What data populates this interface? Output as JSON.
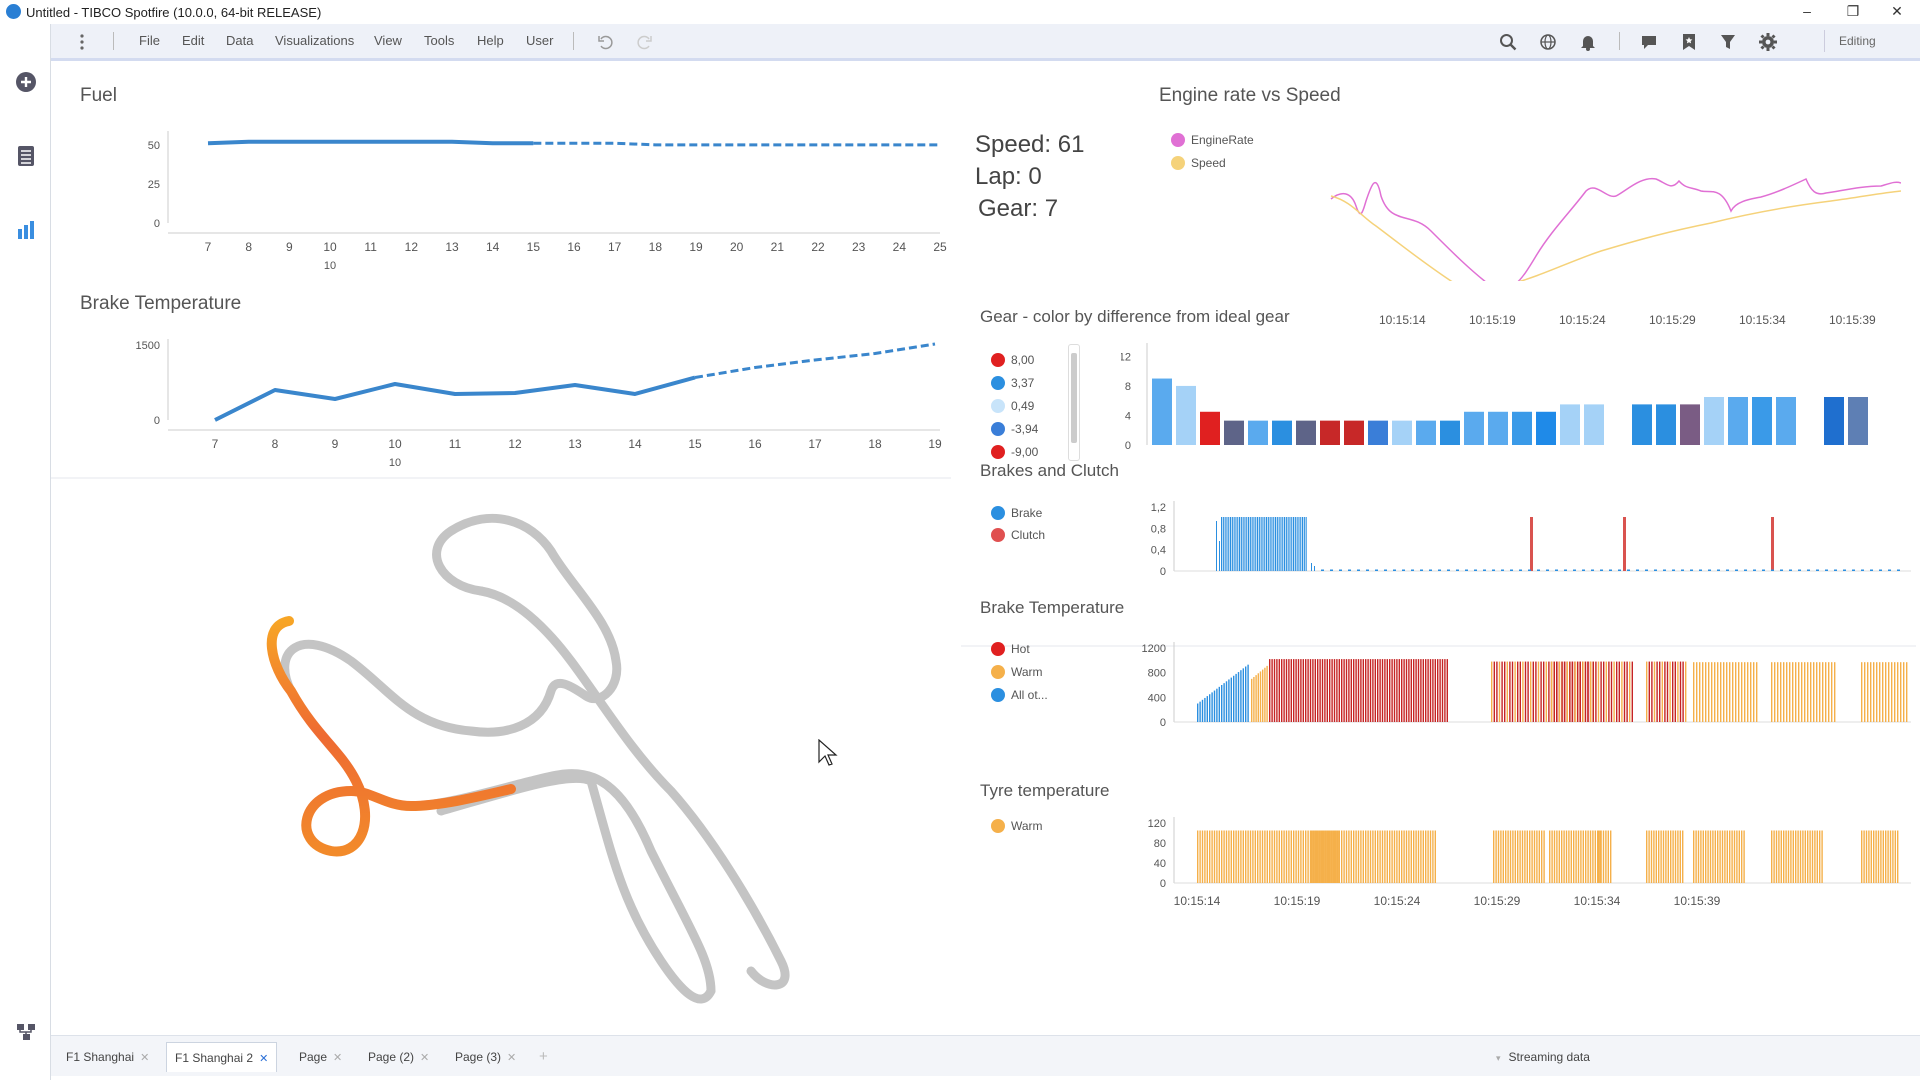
{
  "window": {
    "title": "Untitled - TIBCO Spotfire (10.0.0, 64-bit RELEASE)",
    "min": "–",
    "max": "❐",
    "close": "✕"
  },
  "menu": [
    "File",
    "Edit",
    "Data",
    "Visualizations",
    "View",
    "Tools",
    "Help",
    "User"
  ],
  "toolbar": {
    "mode": "Editing"
  },
  "fuel": {
    "title": "Fuel",
    "y_ticks": [
      "50",
      "25",
      "0"
    ],
    "x_ticks": [
      "7",
      "8",
      "9",
      "10",
      "11",
      "12",
      "13",
      "14",
      "15",
      "16",
      "17",
      "18",
      "19",
      "20",
      "21",
      "22",
      "23",
      "24",
      "25"
    ],
    "x_group": "10",
    "chart_data": {
      "type": "line",
      "x": [
        7,
        8,
        9,
        10,
        11,
        12,
        13,
        14,
        15,
        16,
        17,
        18,
        19,
        20,
        21,
        22,
        23,
        24,
        25
      ],
      "series": [
        {
          "values": [
            51,
            52,
            52,
            52,
            52,
            52,
            52,
            51,
            51,
            51,
            51,
            50,
            50,
            50,
            50,
            50,
            50,
            50,
            50
          ]
        }
      ],
      "ylim": [
        0,
        55
      ],
      "actual_until": 15
    }
  },
  "brake_top": {
    "title": "Brake Temperature",
    "y_ticks": [
      "1500",
      "0"
    ],
    "x_ticks": [
      "7",
      "8",
      "9",
      "10",
      "11",
      "12",
      "13",
      "14",
      "15",
      "16",
      "17",
      "18",
      "19"
    ],
    "x_group": "10",
    "chart_data": {
      "type": "line",
      "x": [
        7,
        8,
        9,
        10,
        11,
        12,
        13,
        14,
        15,
        16,
        17,
        18,
        19
      ],
      "series": [
        {
          "values": [
            0,
            600,
            420,
            720,
            520,
            540,
            700,
            520,
            850,
            1050,
            1200,
            1330,
            1520
          ]
        }
      ],
      "ylim": [
        0,
        1500
      ],
      "actual_until": 15
    }
  },
  "kpi": {
    "speed": "Speed: 61",
    "lap": "Lap: 0",
    "gear": "Gear: 7"
  },
  "engine": {
    "title": "Engine rate vs Speed",
    "legend": [
      {
        "name": "EngineRate",
        "color": "#e070d4"
      },
      {
        "name": "Speed",
        "color": "#f5d27a"
      }
    ],
    "x_ticks": [
      "10:15:14",
      "10:15:19",
      "10:15:24",
      "10:15:29",
      "10:15:34",
      "10:15:39"
    ]
  },
  "gear": {
    "title": "Gear - color by difference from ideal gear",
    "legend": [
      {
        "name": "8,00",
        "color": "#e02020"
      },
      {
        "name": "3,37",
        "color": "#2b8fe0"
      },
      {
        "name": "0,49",
        "color": "#c8e4fa"
      },
      {
        "name": "-3,94",
        "color": "#3a7ed8"
      },
      {
        "name": "-9,00",
        "color": "#e02020"
      }
    ],
    "y_ticks": [
      "12",
      "8",
      "4",
      "0"
    ],
    "chart_data": {
      "type": "bar",
      "ylim": [
        0,
        13
      ],
      "values": [
        9,
        8,
        4.5,
        3.3,
        3.3,
        3.3,
        3.3,
        3.3,
        3.3,
        3.3,
        3.3,
        3.3,
        3.3,
        4.5,
        4.5,
        4.5,
        4.5,
        5.5,
        5.5,
        null,
        5.5,
        5.5,
        5.5,
        6.5,
        6.5,
        6.5,
        6.5,
        null,
        6.5,
        6.5
      ],
      "colors": [
        "#5aaaee",
        "#a5d2f7",
        "#e02020",
        "#5e6488",
        "#5aaaee",
        "#2b8fe0",
        "#5e6488",
        "#c72828",
        "#c72828",
        "#3a7ed8",
        "#a5d2f7",
        "#5aaaee",
        "#2b8fe0",
        "#5aaaee",
        "#5aaaee",
        "#3a9ae8",
        "#1f8ae8",
        "#a5d2f7",
        "#a5d2f7",
        "#fff",
        "#2b8fe0",
        "#2b8fe0",
        "#7a5c84",
        "#a5d2f7",
        "#5aaaee",
        "#3a9ae8",
        "#5aaaee",
        "#fff",
        "#1f6fcf",
        "#5e7fb4"
      ]
    }
  },
  "brakes_clutch": {
    "title": "Brakes and Clutch",
    "legend": [
      {
        "name": "Brake",
        "color": "#2b8fe0"
      },
      {
        "name": "Clutch",
        "color": "#e05050"
      }
    ],
    "y_ticks": [
      "1,2",
      "0,8",
      "0,4",
      "0"
    ]
  },
  "brake_temp": {
    "title": "Brake Temperature",
    "legend": [
      {
        "name": "Hot",
        "color": "#e02020"
      },
      {
        "name": "Warm",
        "color": "#f5b04a"
      },
      {
        "name": "All ot...",
        "color": "#2b8fe0"
      }
    ],
    "y_ticks": [
      "1200",
      "800",
      "400",
      "0"
    ]
  },
  "tyre": {
    "title": "Tyre temperature",
    "legend": [
      {
        "name": "Warm",
        "color": "#f5b04a"
      }
    ],
    "y_ticks": [
      "120",
      "80",
      "40",
      "0"
    ],
    "x_ticks": [
      "10:15:14",
      "10:15:19",
      "10:15:24",
      "10:15:29",
      "10:15:34",
      "10:15:39"
    ]
  },
  "tabs": [
    {
      "label": "F1 Shanghai"
    },
    {
      "label": "F1 Shanghai 2"
    },
    {
      "label": "Page"
    },
    {
      "label": "Page (2)"
    },
    {
      "label": "Page (3)"
    }
  ],
  "tabadd": "+",
  "streaming": "Streaming data"
}
